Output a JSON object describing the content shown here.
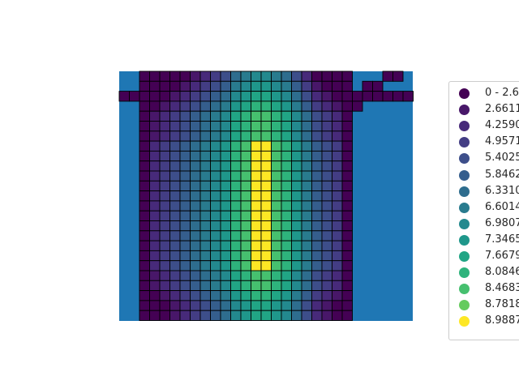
{
  "chart_data": {
    "type": "heatmap",
    "title": "",
    "xlabel": "",
    "ylabel": "",
    "axes_visible": false,
    "background_color": "#1f77b4",
    "cell_border_color": "#000000",
    "colormap": "viridis",
    "legend": {
      "placement": "right, partially clipped",
      "entries": [
        {
          "label": "0 - 2.6",
          "color": "#440154"
        },
        {
          "label": "2.6611",
          "color": "#481769"
        },
        {
          "label": "4.2590",
          "color": "#472a7a"
        },
        {
          "label": "4.9571",
          "color": "#433d84"
        },
        {
          "label": "5.4025",
          "color": "#3d4e8a"
        },
        {
          "label": "5.8462",
          "color": "#355e8d"
        },
        {
          "label": "6.3310",
          "color": "#2e6d8e"
        },
        {
          "label": "6.6014",
          "color": "#297b8e"
        },
        {
          "label": "6.9807",
          "color": "#23898e"
        },
        {
          "label": "7.3465",
          "color": "#1f978b"
        },
        {
          "label": "7.6679",
          "color": "#21a585"
        },
        {
          "label": "8.0846",
          "color": "#2eb37c"
        },
        {
          "label": "8.4683",
          "color": "#46c06f"
        },
        {
          "label": "8.7818",
          "color": "#65cb5e"
        },
        {
          "label": "8.9887",
          "color": "#fde725"
        }
      ]
    },
    "grid": {
      "columns": 21,
      "rows": 25,
      "cell_class_by_column": [
        0,
        1,
        2,
        3,
        4,
        5,
        6,
        7,
        8,
        10,
        11,
        12,
        12,
        11,
        10,
        8,
        6,
        4,
        3,
        2,
        0
      ],
      "row_adjust": [
        -4,
        -3,
        -2,
        -1,
        0,
        0,
        0,
        1,
        1,
        1,
        1,
        1,
        1,
        1,
        1,
        1,
        1,
        1,
        1,
        1,
        0,
        0,
        -1,
        -2,
        -2
      ]
    },
    "extra_cells": [
      {
        "col": -2,
        "row": 2,
        "class": 0
      },
      {
        "col": -1,
        "row": 2,
        "class": 0
      },
      {
        "col": 21,
        "row": 2,
        "class": 0
      },
      {
        "col": 21,
        "row": 3,
        "class": 0
      },
      {
        "col": 22,
        "row": 1,
        "class": 0
      },
      {
        "col": 22,
        "row": 2,
        "class": 0
      },
      {
        "col": 23,
        "row": 1,
        "class": 0
      },
      {
        "col": 23,
        "row": 2,
        "class": 0
      },
      {
        "col": 24,
        "row": 0,
        "class": 0
      },
      {
        "col": 24,
        "row": 2,
        "class": 0
      },
      {
        "col": 25,
        "row": 0,
        "class": 0
      },
      {
        "col": 25,
        "row": 2,
        "class": 0
      },
      {
        "col": 26,
        "row": 2,
        "class": 0
      }
    ]
  }
}
